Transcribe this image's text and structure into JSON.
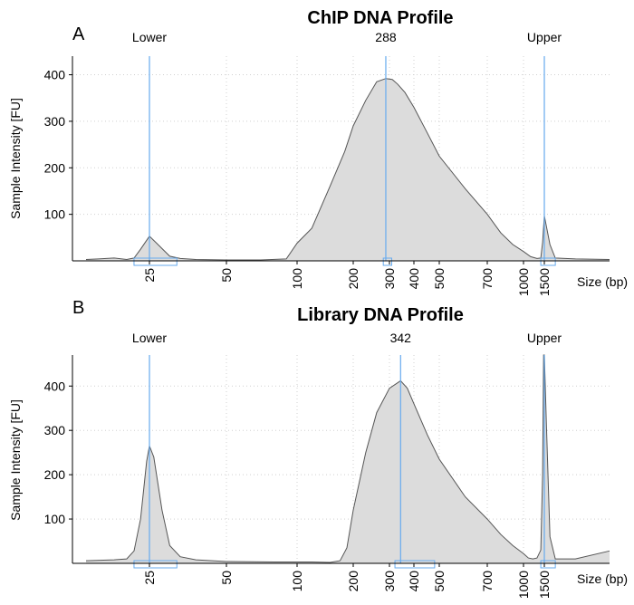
{
  "chart_data": [
    {
      "type": "area",
      "panel_label": "A",
      "title": "ChIP DNA Profile",
      "xlabel": "Size (bp)",
      "ylabel": "Sample Intensity [FU]",
      "ylim": [
        0,
        440
      ],
      "yticks": [
        100,
        200,
        300,
        400
      ],
      "x_tick_labels": [
        "25",
        "50",
        "100",
        "200",
        "300",
        "400",
        "500",
        "700",
        "1000",
        "1500"
      ],
      "marker_labels": [
        {
          "name": "lower",
          "text": "Lower",
          "at": 25
        },
        {
          "name": "peak",
          "text": "288",
          "at": 288
        },
        {
          "name": "upper",
          "text": "Upper",
          "at": 1500
        }
      ],
      "marker_lines": [
        25,
        288,
        1500
      ],
      "marker_boxes": [
        [
          20,
          32
        ],
        [
          280,
          308
        ],
        [
          1400,
          1600
        ]
      ],
      "trace": [
        [
          10,
          3
        ],
        [
          12,
          4
        ],
        [
          15,
          6
        ],
        [
          18,
          3
        ],
        [
          20,
          6
        ],
        [
          22,
          25
        ],
        [
          25,
          53
        ],
        [
          27,
          35
        ],
        [
          30,
          10
        ],
        [
          33,
          5
        ],
        [
          38,
          3
        ],
        [
          50,
          2
        ],
        [
          70,
          2
        ],
        [
          90,
          4
        ],
        [
          100,
          38
        ],
        [
          120,
          70
        ],
        [
          150,
          160
        ],
        [
          180,
          235
        ],
        [
          200,
          290
        ],
        [
          230,
          345
        ],
        [
          260,
          385
        ],
        [
          288,
          392
        ],
        [
          310,
          390
        ],
        [
          330,
          380
        ],
        [
          360,
          362
        ],
        [
          400,
          330
        ],
        [
          450,
          275
        ],
        [
          500,
          225
        ],
        [
          600,
          155
        ],
        [
          700,
          100
        ],
        [
          800,
          60
        ],
        [
          900,
          35
        ],
        [
          1000,
          20
        ],
        [
          1150,
          9
        ],
        [
          1300,
          5
        ],
        [
          1400,
          6
        ],
        [
          1450,
          40
        ],
        [
          1500,
          97
        ],
        [
          1550,
          35
        ],
        [
          1600,
          6
        ],
        [
          1800,
          4
        ],
        [
          2200,
          3
        ]
      ]
    },
    {
      "type": "area",
      "panel_label": "B",
      "title": "Library DNA Profile",
      "xlabel": "Size (bp)",
      "ylabel": "Sample Intensity [FU]",
      "ylim": [
        0,
        470
      ],
      "yticks": [
        100,
        200,
        300,
        400
      ],
      "x_tick_labels": [
        "25",
        "50",
        "100",
        "200",
        "300",
        "400",
        "500",
        "700",
        "1000",
        "1500"
      ],
      "marker_labels": [
        {
          "name": "lower",
          "text": "Lower",
          "at": 25
        },
        {
          "name": "peak",
          "text": "342",
          "at": 342
        },
        {
          "name": "upper",
          "text": "Upper",
          "at": 1500
        }
      ],
      "marker_lines": [
        25,
        342,
        1500
      ],
      "marker_boxes": [
        [
          20,
          32
        ],
        [
          320,
          480
        ],
        [
          1400,
          1600
        ]
      ],
      "trace": [
        [
          10,
          6
        ],
        [
          15,
          8
        ],
        [
          18,
          10
        ],
        [
          20,
          28
        ],
        [
          22,
          100
        ],
        [
          24,
          230
        ],
        [
          25,
          265
        ],
        [
          26,
          240
        ],
        [
          28,
          120
        ],
        [
          30,
          40
        ],
        [
          33,
          15
        ],
        [
          38,
          8
        ],
        [
          50,
          4
        ],
        [
          80,
          3
        ],
        [
          120,
          3
        ],
        [
          150,
          2
        ],
        [
          170,
          6
        ],
        [
          185,
          35
        ],
        [
          200,
          120
        ],
        [
          230,
          250
        ],
        [
          260,
          340
        ],
        [
          300,
          395
        ],
        [
          342,
          412
        ],
        [
          370,
          395
        ],
        [
          400,
          360
        ],
        [
          450,
          290
        ],
        [
          500,
          235
        ],
        [
          600,
          150
        ],
        [
          700,
          100
        ],
        [
          800,
          65
        ],
        [
          900,
          40
        ],
        [
          1000,
          22
        ],
        [
          1100,
          12
        ],
        [
          1200,
          10
        ],
        [
          1300,
          12
        ],
        [
          1400,
          30
        ],
        [
          1450,
          200
        ],
        [
          1480,
          470
        ],
        [
          1500,
          470
        ],
        [
          1520,
          300
        ],
        [
          1550,
          60
        ],
        [
          1600,
          10
        ],
        [
          1800,
          10
        ],
        [
          2200,
          28
        ]
      ]
    }
  ]
}
